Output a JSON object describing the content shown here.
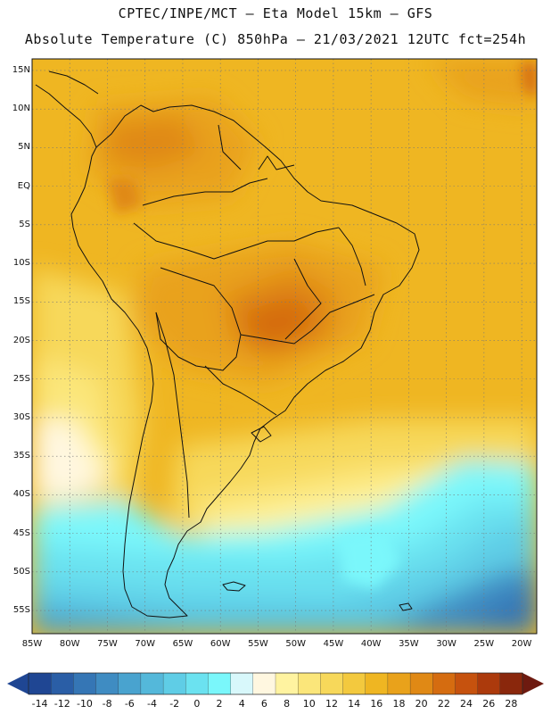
{
  "header": {
    "line1": "CPTEC/INPE/MCT –  Eta Model 15km – GFS",
    "line2": "Absolute Temperature (C) 850hPa – 21/03/2021 12UTC fct=254h"
  },
  "axes": {
    "lat_labels": [
      "15N",
      "10N",
      "5N",
      "EQ",
      "5S",
      "10S",
      "15S",
      "20S",
      "25S",
      "30S",
      "35S",
      "40S",
      "45S",
      "50S",
      "55S"
    ],
    "lon_labels": [
      "85W",
      "80W",
      "75W",
      "70W",
      "65W",
      "60W",
      "55W",
      "50W",
      "45W",
      "40W",
      "35W",
      "30W",
      "25W",
      "20W"
    ]
  },
  "colorbar": {
    "labels": [
      "-14",
      "-12",
      "-10",
      "-8",
      "-6",
      "-4",
      "-2",
      "0",
      "2",
      "4",
      "6",
      "8",
      "10",
      "12",
      "14",
      "16",
      "18",
      "20",
      "22",
      "24",
      "26",
      "28"
    ],
    "colors": [
      "#1f4693",
      "#2a5ea6",
      "#3576b5",
      "#3f8cc2",
      "#49a3cf",
      "#54b8da",
      "#5fcde6",
      "#6be2f0",
      "#7af7fb",
      "#d8f8fb",
      "#fff7e0",
      "#fff3a0",
      "#fbe67a",
      "#f7d85a",
      "#f3c93e",
      "#efb622",
      "#e9a21b",
      "#e08915",
      "#d56c10",
      "#c6520e",
      "#ac3a0c",
      "#8a270c"
    ]
  }
}
